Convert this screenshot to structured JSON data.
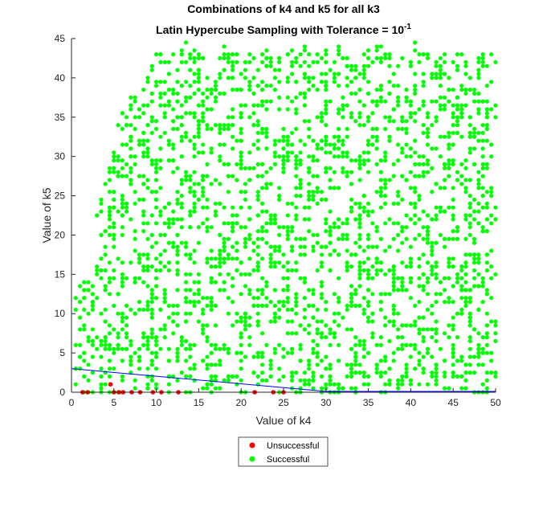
{
  "chart_data": {
    "type": "scatter",
    "title": "Combinations of k4 and k5 for all k3",
    "subtitle_prefix": "Latin Hypercube Sampling with Tolerance = 10",
    "subtitle_exponent": "-1",
    "xlabel": "Value of k4",
    "ylabel": "Value of k5",
    "xlim": [
      0,
      50
    ],
    "ylim": [
      0,
      45
    ],
    "xticks": [
      "0",
      "5",
      "10",
      "15",
      "20",
      "25",
      "30",
      "35",
      "40",
      "45",
      "50"
    ],
    "yticks": [
      "0",
      "5",
      "10",
      "15",
      "20",
      "25",
      "30",
      "35",
      "40",
      "45"
    ],
    "grid": false,
    "legend_position": "below plot",
    "series": [
      {
        "name": "Unsuccessful",
        "color": "#ff0000",
        "points": [
          [
            1.3,
            0
          ],
          [
            1.9,
            0
          ],
          [
            4.6,
            1
          ],
          [
            5.0,
            0
          ],
          [
            5.6,
            0
          ],
          [
            6.1,
            0
          ],
          [
            7.1,
            0
          ],
          [
            8.1,
            0
          ],
          [
            9.6,
            0
          ],
          [
            10.6,
            0
          ],
          [
            12.6,
            0
          ],
          [
            21.6,
            0
          ],
          [
            23.8,
            0
          ],
          [
            25.0,
            0
          ]
        ]
      },
      {
        "name": "Successful",
        "color": "#00ff00",
        "point_count": 2600,
        "x_range": [
          0.5,
          50
        ],
        "y_range": [
          0,
          44.6
        ]
      }
    ],
    "reference_line": {
      "color": "#0000ff",
      "points": [
        [
          0,
          3.0
        ],
        [
          30,
          0.1
        ]
      ]
    }
  }
}
